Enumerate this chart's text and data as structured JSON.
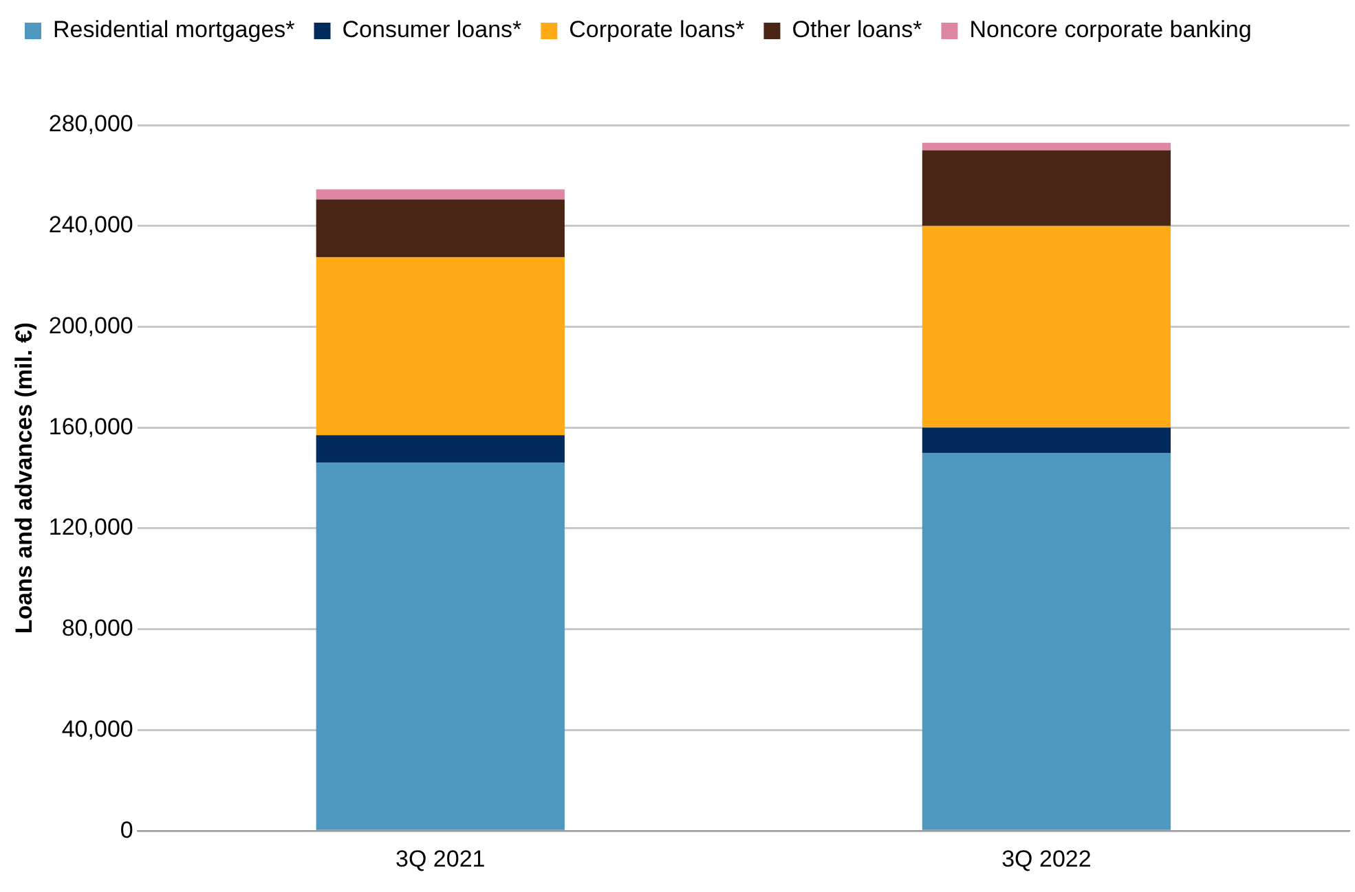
{
  "chart_data": {
    "type": "bar",
    "stacked": true,
    "ylabel": "Loans and advances (mil. €)",
    "categories": [
      "3Q 2021",
      "3Q 2022"
    ],
    "series": [
      {
        "name": "Residential mortgages*",
        "color": "#4f99c1",
        "values": [
          146000,
          150000
        ]
      },
      {
        "name": "Consumer loans*",
        "color": "#002b5c",
        "values": [
          11000,
          10000
        ]
      },
      {
        "name": "Corporate loans*",
        "color": "#ffab18",
        "values": [
          70500,
          80000
        ]
      },
      {
        "name": "Other loans*",
        "color": "#4a2515",
        "values": [
          23000,
          30000
        ]
      },
      {
        "name": "Noncore corporate banking",
        "color": "#dd87a3",
        "values": [
          4000,
          3000
        ]
      }
    ],
    "ylim": [
      0,
      280000
    ],
    "yticks": [
      0,
      {
        "value": 40000,
        "label": "40,000"
      },
      {
        "value": 80000,
        "label": "80,000"
      },
      {
        "value": 120000,
        "label": "120,000"
      },
      {
        "value": 160000,
        "label": "160,000"
      },
      {
        "value": 200000,
        "label": "200,000"
      },
      {
        "value": 240000,
        "label": "240,000"
      },
      {
        "value": 280000,
        "label": "280,000"
      }
    ],
    "grid": "y",
    "legend": "top left"
  }
}
